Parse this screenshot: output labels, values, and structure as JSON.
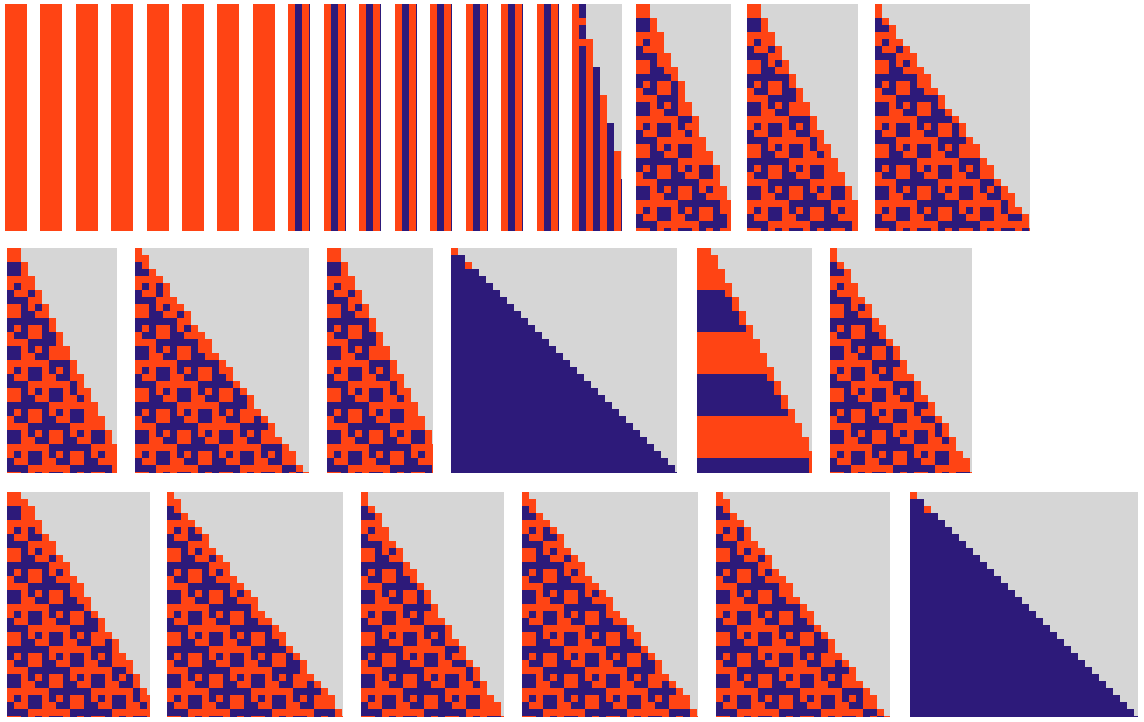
{
  "colors": {
    "background": "#ffffff",
    "empty": "#d6d6d6",
    "orange": "#ff4414",
    "navy": "#2d1a7a"
  },
  "rows": [
    {
      "name": "row-1",
      "panels": [
        {
          "pattern": "solid-orange-stripe"
        },
        {
          "pattern": "solid-orange-stripe"
        },
        {
          "pattern": "solid-orange-stripe"
        },
        {
          "pattern": "solid-orange-stripe"
        },
        {
          "pattern": "solid-orange-stripe"
        },
        {
          "pattern": "solid-orange-stripe"
        },
        {
          "pattern": "solid-orange-stripe"
        },
        {
          "pattern": "solid-orange-stripe"
        },
        {
          "pattern": "orange-navy-stripes"
        },
        {
          "pattern": "orange-navy-stripes"
        },
        {
          "pattern": "orange-navy-stripes"
        },
        {
          "pattern": "orange-navy-stripes"
        },
        {
          "pattern": "orange-navy-stripes"
        },
        {
          "pattern": "orange-navy-stripes"
        },
        {
          "pattern": "orange-navy-stripes"
        },
        {
          "pattern": "orange-navy-stripes"
        },
        {
          "pattern": "staircase-stripes"
        },
        {
          "pattern": "staircase-mixed"
        },
        {
          "pattern": "staircase-mixed"
        },
        {
          "pattern": "triangle-mixed"
        }
      ]
    },
    {
      "name": "row-2",
      "panels": [
        {
          "pattern": "staircase-mixed"
        },
        {
          "pattern": "triangle-mixed"
        },
        {
          "pattern": "staircase-mixed"
        },
        {
          "pattern": "triangle-solid-navy"
        },
        {
          "pattern": "staircase-bands"
        },
        {
          "pattern": "triangle-mixed"
        }
      ]
    },
    {
      "name": "row-3",
      "panels": [
        {
          "pattern": "staircase-mixed"
        },
        {
          "pattern": "triangle-mixed"
        },
        {
          "pattern": "triangle-mixed"
        },
        {
          "pattern": "triangle-mixed"
        },
        {
          "pattern": "triangle-mixed"
        },
        {
          "pattern": "triangle-solid-navy"
        }
      ]
    }
  ]
}
